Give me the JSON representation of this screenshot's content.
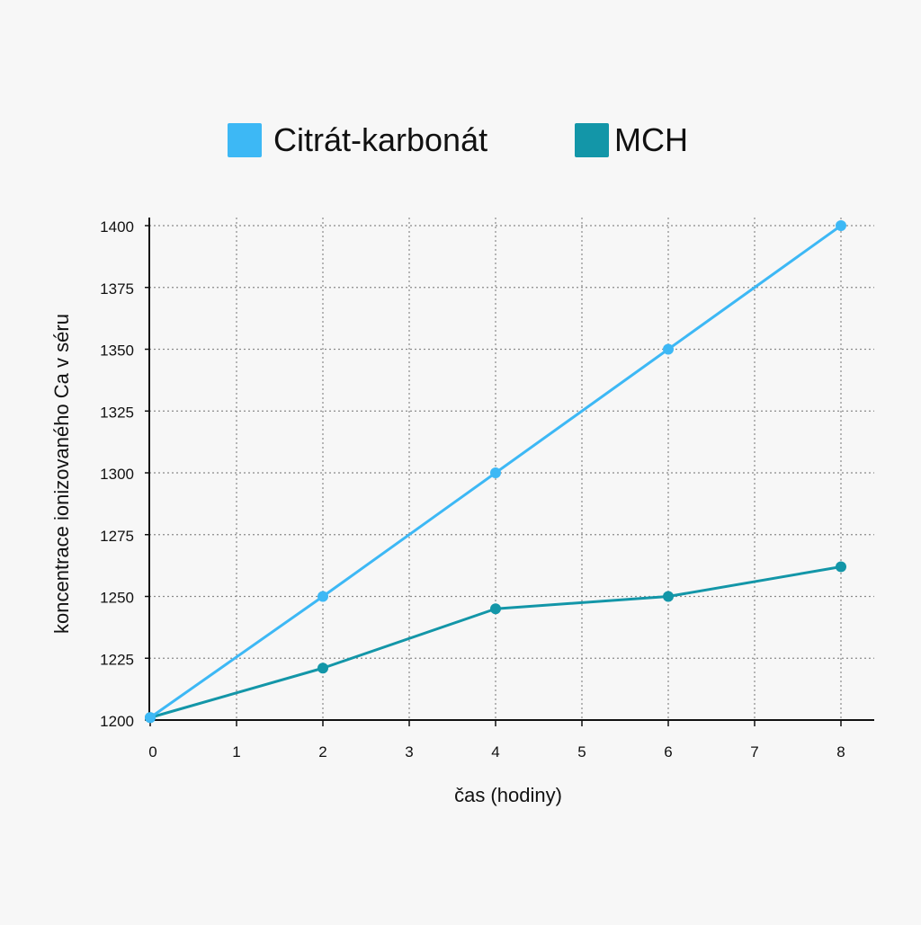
{
  "chart_data": {
    "type": "line",
    "x": [
      0,
      2,
      4,
      6,
      8
    ],
    "series": [
      {
        "name": "Citrát-karbonát",
        "color": "#3db8f5",
        "values": [
          1201,
          1250,
          1300,
          1350,
          1400
        ]
      },
      {
        "name": "MCH",
        "color": "#1396a8",
        "values": [
          1201,
          1221,
          1245,
          1250,
          1262
        ]
      }
    ],
    "xlabel": "čas (hodiny)",
    "ylabel": "koncentrace ionizovaného Ca v séru",
    "xlim": [
      0,
      8.3
    ],
    "ylim": [
      1200,
      1400
    ],
    "xticks": [
      0,
      1,
      2,
      3,
      4,
      5,
      6,
      7,
      8
    ],
    "yticks": [
      1200,
      1225,
      1250,
      1275,
      1300,
      1325,
      1350,
      1375,
      1400
    ],
    "grid": true,
    "legend_position": "top-center"
  }
}
